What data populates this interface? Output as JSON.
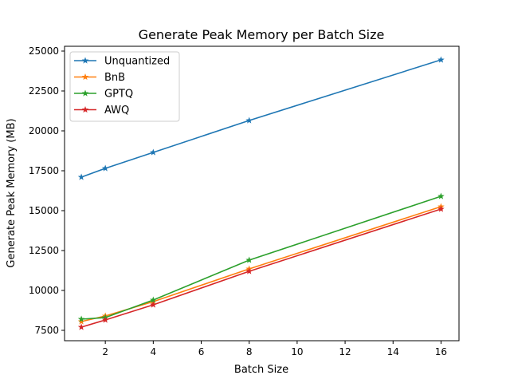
{
  "chart_data": {
    "type": "line",
    "title": "Generate Peak Memory per Batch Size",
    "xlabel": "Batch Size",
    "ylabel": "Generate Peak Memory (MB)",
    "xlim": [
      0.3,
      16.75
    ],
    "ylim": [
      6850,
      25300
    ],
    "xticks": [
      2,
      4,
      6,
      8,
      10,
      12,
      14,
      16
    ],
    "yticks": [
      7500,
      10000,
      12500,
      15000,
      17500,
      20000,
      22500,
      25000
    ],
    "legend": "top-left",
    "grid": false,
    "marker": "star",
    "x": [
      1,
      2,
      4,
      8,
      16
    ],
    "series": [
      {
        "name": "Unquantized",
        "color": "#1f77b4",
        "values": [
          17100,
          17650,
          18650,
          20650,
          24450
        ]
      },
      {
        "name": "BnB",
        "color": "#ff7f0e",
        "values": [
          8050,
          8400,
          9300,
          11350,
          15250
        ]
      },
      {
        "name": "GPTQ",
        "color": "#2ca02c",
        "values": [
          8200,
          8300,
          9400,
          11900,
          15900
        ]
      },
      {
        "name": "AWQ",
        "color": "#d62728",
        "values": [
          7700,
          8150,
          9100,
          11200,
          15100
        ]
      }
    ]
  }
}
